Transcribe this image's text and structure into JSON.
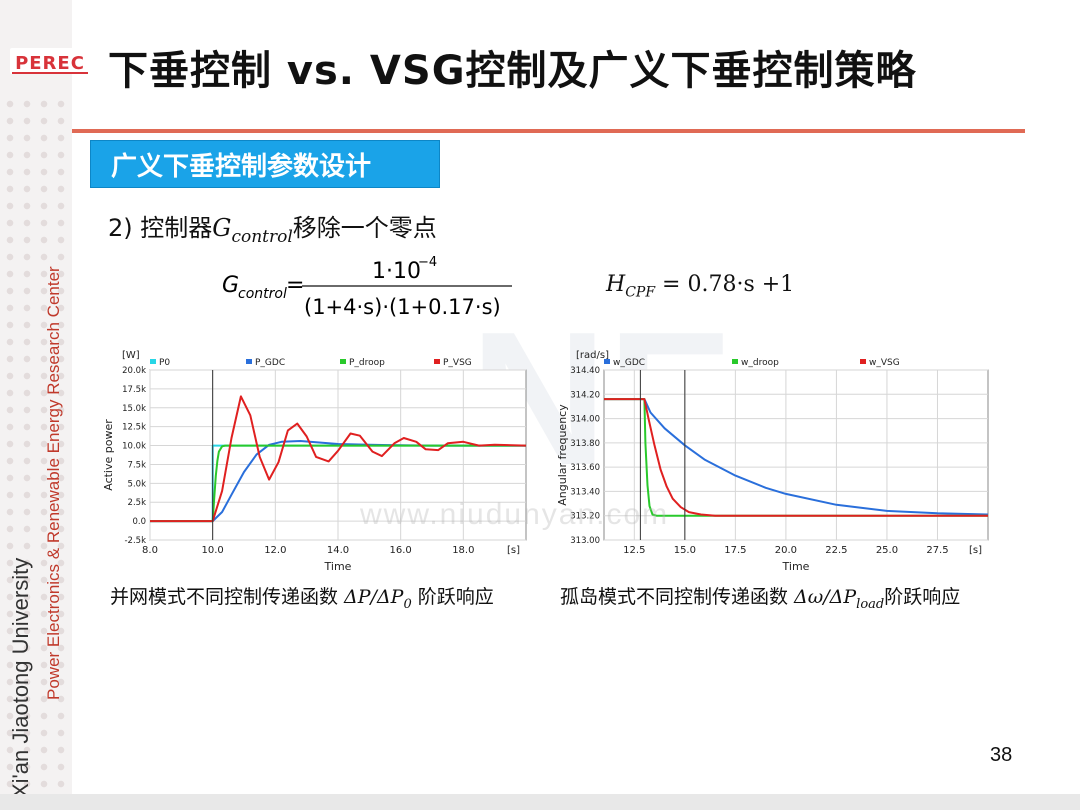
{
  "logo_text": "PEREC",
  "title": "下垂控制 vs. VSG控制及广义下垂控制策略",
  "section_heading": "广义下垂控制参数设计",
  "subheading": {
    "prefix": "2) 控制器",
    "symbol": "G",
    "subscript": "control",
    "suffix": "移除一个零点"
  },
  "equation_gcontrol": {
    "lhs_symbol": "G",
    "lhs_subscript": "control",
    "numerator": "1·10",
    "numerator_exp": "−4",
    "denominator": "(1+4·s)·(1+0.17·s)"
  },
  "equation_hcpf": {
    "lhs_symbol": "H",
    "lhs_subscript": "CPF",
    "rhs": "= 0.78·s +1"
  },
  "side_text": {
    "university": "Xi'an Jiaotong University",
    "center": "Power Electronics & Renewable Energy Research Center"
  },
  "watermark": "www.niudunyan.com",
  "page_number": "38",
  "colors": {
    "title_rule": "#e06a55",
    "section_box": "#1aa3e8",
    "p0": "#27d6e6",
    "gdc": "#2a6fdb",
    "droop": "#29c92b",
    "vsg": "#e02020"
  },
  "captions": {
    "left": {
      "prefix": "并网模式不同控制传递函数 ",
      "math": "ΔP/ΔP",
      "sub": "0",
      "suffix": " 阶跃响应"
    },
    "right": {
      "prefix": "孤岛模式不同控制传递函数 ",
      "math": "Δω/ΔP",
      "sub": "load",
      "suffix": "阶跃响应"
    }
  },
  "chart_data": [
    {
      "type": "line",
      "unit_label": "[W]",
      "ylabel": "Active power",
      "xlabel": "Time",
      "x_unit": "[s]",
      "xlim": [
        8.0,
        20.0
      ],
      "ylim": [
        -2500,
        20000
      ],
      "x_ticks": [
        "8.0",
        "10.0",
        "12.0",
        "14.0",
        "16.0",
        "18.0"
      ],
      "y_ticks": [
        "-2.5k",
        "0.0",
        "2.5k",
        "5.0k",
        "7.5k",
        "10.0k",
        "12.5k",
        "15.0k",
        "17.5k",
        "20.0k"
      ],
      "grid": true,
      "legend_position": "top",
      "series": [
        {
          "name": "P0",
          "x": [
            8.0,
            10.0,
            10.0,
            20.0
          ],
          "y": [
            0,
            0,
            10000,
            10000
          ]
        },
        {
          "name": "P_GDC",
          "x": [
            8.0,
            10.0,
            10.3,
            10.6,
            11.0,
            11.4,
            11.8,
            12.2,
            12.8,
            13.4,
            14.0,
            15.0,
            17.0,
            20.0
          ],
          "y": [
            0,
            0,
            1200,
            3500,
            6500,
            8800,
            10100,
            10500,
            10600,
            10400,
            10200,
            10100,
            10000,
            10000
          ]
        },
        {
          "name": "P_droop",
          "x": [
            8.0,
            10.0,
            10.05,
            10.1,
            10.15,
            10.2,
            10.3,
            10.4,
            10.5,
            20.0
          ],
          "y": [
            0,
            0,
            3000,
            6000,
            8000,
            9200,
            9900,
            10000,
            10000,
            10000
          ]
        },
        {
          "name": "P_VSG",
          "x": [
            8.0,
            10.0,
            10.3,
            10.6,
            10.9,
            11.2,
            11.5,
            11.8,
            12.1,
            12.4,
            12.7,
            13.0,
            13.3,
            13.7,
            14.0,
            14.4,
            14.7,
            15.1,
            15.4,
            15.8,
            16.1,
            16.5,
            16.8,
            17.2,
            17.5,
            18.0,
            18.5,
            19.0,
            20.0
          ],
          "y": [
            0,
            0,
            4000,
            11000,
            16500,
            14000,
            8500,
            5500,
            7800,
            12000,
            12900,
            11200,
            8500,
            7900,
            9300,
            11600,
            11300,
            9200,
            8600,
            10300,
            11000,
            10500,
            9500,
            9400,
            10300,
            10500,
            10000,
            10100,
            10000
          ]
        }
      ]
    },
    {
      "type": "line",
      "unit_label": "[rad/s]",
      "ylabel": "Angular frequency",
      "xlabel": "Time",
      "x_unit": "[s]",
      "xlim": [
        11.0,
        30.0
      ],
      "ylim": [
        313.0,
        314.4
      ],
      "x_ticks": [
        "12.5",
        "15.0",
        "17.5",
        "20.0",
        "22.5",
        "25.0",
        "27.5"
      ],
      "y_ticks": [
        "313.00",
        "313.20",
        "313.40",
        "313.60",
        "313.80",
        "314.00",
        "314.20",
        "314.40"
      ],
      "grid": true,
      "legend_position": "top",
      "series": [
        {
          "name": "w_GDC",
          "x": [
            11.0,
            13.0,
            13.3,
            14.0,
            15.0,
            16.0,
            17.5,
            19.0,
            20.0,
            22.5,
            25.0,
            27.5,
            30.0
          ],
          "y": [
            314.16,
            314.16,
            314.05,
            313.92,
            313.78,
            313.66,
            313.53,
            313.43,
            313.38,
            313.29,
            313.24,
            313.22,
            313.21
          ]
        },
        {
          "name": "w_droop",
          "x": [
            11.0,
            13.0,
            13.05,
            13.15,
            13.25,
            13.4,
            13.6,
            30.0
          ],
          "y": [
            314.16,
            314.16,
            313.8,
            313.45,
            313.28,
            313.21,
            313.2,
            313.2
          ]
        },
        {
          "name": "w_VSG",
          "x": [
            11.0,
            13.0,
            13.2,
            13.5,
            13.8,
            14.1,
            14.4,
            14.8,
            15.2,
            15.8,
            16.5,
            30.0
          ],
          "y": [
            314.16,
            314.16,
            314.0,
            313.78,
            313.58,
            313.44,
            313.34,
            313.27,
            313.23,
            313.21,
            313.2,
            313.2
          ]
        }
      ]
    }
  ]
}
